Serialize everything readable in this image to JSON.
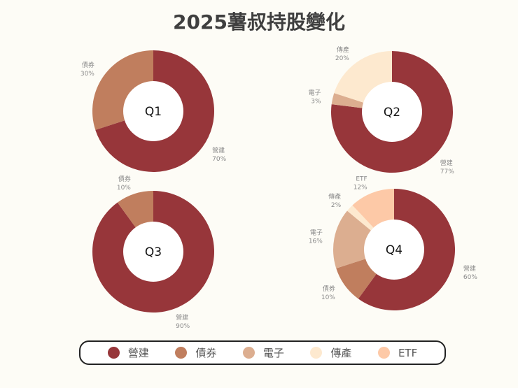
{
  "title": "2025薯叔持股變化",
  "colors": {
    "營建": "#97363a",
    "債券": "#c07e5e",
    "電子": "#dcae90",
    "傳產": "#fde9cf",
    "ETF": "#fdc9a7"
  },
  "legend": [
    "營建",
    "債券",
    "電子",
    "傳產",
    "ETF"
  ],
  "chart_data": [
    {
      "type": "pie",
      "title": "Q1",
      "slices": [
        {
          "label": "營建",
          "value": 70
        },
        {
          "label": "債券",
          "value": 30
        }
      ]
    },
    {
      "type": "pie",
      "title": "Q2",
      "slices": [
        {
          "label": "營建",
          "value": 77
        },
        {
          "label": "電子",
          "value": 3
        },
        {
          "label": "傳產",
          "value": 20
        }
      ]
    },
    {
      "type": "pie",
      "title": "Q3",
      "slices": [
        {
          "label": "營建",
          "value": 90
        },
        {
          "label": "債券",
          "value": 10
        }
      ]
    },
    {
      "type": "pie",
      "title": "Q4",
      "slices": [
        {
          "label": "營建",
          "value": 60
        },
        {
          "label": "債券",
          "value": 10
        },
        {
          "label": "電子",
          "value": 16
        },
        {
          "label": "傳產",
          "value": 2
        },
        {
          "label": "ETF",
          "value": 12
        }
      ]
    }
  ]
}
